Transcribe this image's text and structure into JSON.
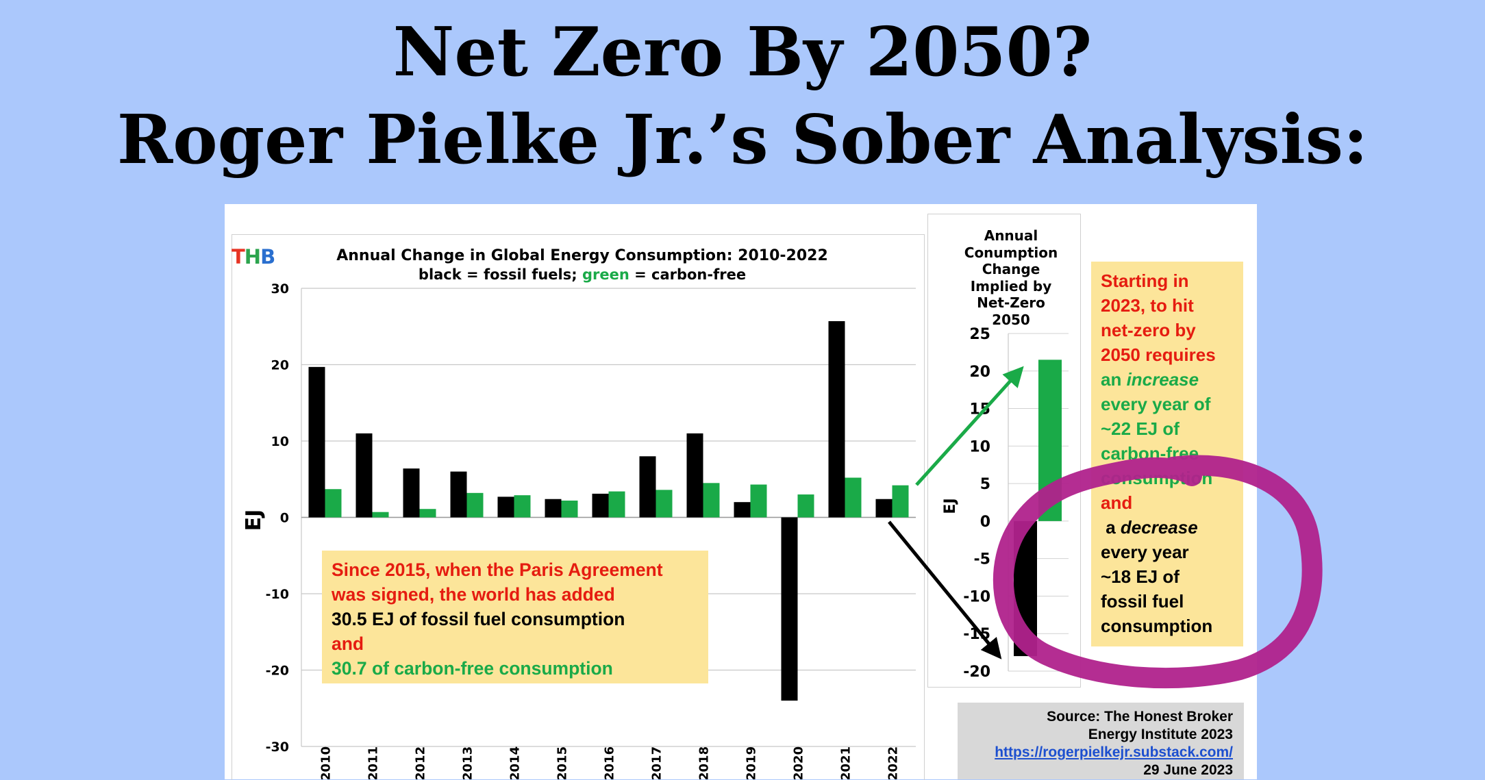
{
  "slide": {
    "title_line1": "Net Zero By 2050?",
    "title_line2": "Roger Pielke Jr.’s Sober Analysis:"
  },
  "logo": {
    "t": "T",
    "h": "H",
    "b": "B"
  },
  "main_chart_text": {
    "title": "Annual Change in Global Energy Consumption: 2010-2022",
    "subtitle_a": "black = fossil fuels; ",
    "subtitle_green": "green",
    "subtitle_b": " = carbon-free"
  },
  "side_chart_text": {
    "title_lines": [
      "Annual",
      "Conumption",
      "Change",
      "Implied by",
      "Net-Zero",
      "2050"
    ]
  },
  "paris_note": {
    "line1": "Since 2015, when the Paris Agreement",
    "line2": "was signed, the world has added",
    "line3": "30.5 EJ of fossil fuel consumption",
    "line4": "and",
    "line5": "30.7 of carbon-free consumption"
  },
  "net_note": {
    "l1": "Starting in",
    "l2": "2023, to hit",
    "l3": "net-zero by",
    "l4": "2050 requires",
    "l5a": "an ",
    "l5b": "increase",
    "l6": "every year of",
    "l7": "~22 EJ of",
    "l8": "carbon-free",
    "l9": "consumption",
    "l10": "and",
    "l11a": " a ",
    "l11b": "decrease",
    "l12": "every year",
    "l13": "~18 EJ of",
    "l14": "fossil fuel",
    "l15": "consumption"
  },
  "source": {
    "line1": "Source: The Honest Broker",
    "line2": "Energy Institute 2023",
    "link": "https://rogerpielkejr.substack.com/",
    "date": "29 June 2023"
  },
  "colors": {
    "fossil": "#000000",
    "carbon_free": "#1aaa48",
    "circle": "#b0228c",
    "arrow_green": "#1aaa48",
    "arrow_black": "#000000",
    "background": "#abc8fc"
  },
  "chart_data": [
    {
      "type": "bar",
      "title": "Annual Change in Global Energy Consumption: 2010-2022",
      "ylabel": "EJ",
      "ylim": [
        -30,
        30
      ],
      "yticks": [
        30,
        20,
        10,
        0,
        -10,
        -20,
        -30
      ],
      "categories": [
        "2010",
        "2011",
        "2012",
        "2013",
        "2014",
        "2015",
        "2016",
        "2017",
        "2018",
        "2019",
        "2020",
        "2021",
        "2022"
      ],
      "series": [
        {
          "name": "fossil fuels",
          "color": "#000000",
          "values": [
            19.7,
            11.0,
            6.4,
            6.0,
            2.7,
            2.4,
            3.1,
            8.0,
            11.0,
            2.0,
            -24.0,
            25.7,
            2.4
          ]
        },
        {
          "name": "carbon-free",
          "color": "#1aaa48",
          "values": [
            3.7,
            0.7,
            1.1,
            3.2,
            2.9,
            2.2,
            3.4,
            3.6,
            4.5,
            4.3,
            3.0,
            5.2,
            4.2
          ]
        }
      ],
      "grid": true
    },
    {
      "type": "bar",
      "title": "Annual Conumption Change Implied by Net-Zero 2050",
      "ylabel": "EJ",
      "ylim": [
        -20,
        25
      ],
      "yticks": [
        25,
        20,
        15,
        10,
        5,
        0,
        -5,
        -10,
        -15,
        -20
      ],
      "series": [
        {
          "color": "#000000",
          "values": [
            -18
          ]
        },
        {
          "color": "#1aaa48",
          "values": [
            21.5
          ]
        }
      ],
      "grid": true
    }
  ]
}
